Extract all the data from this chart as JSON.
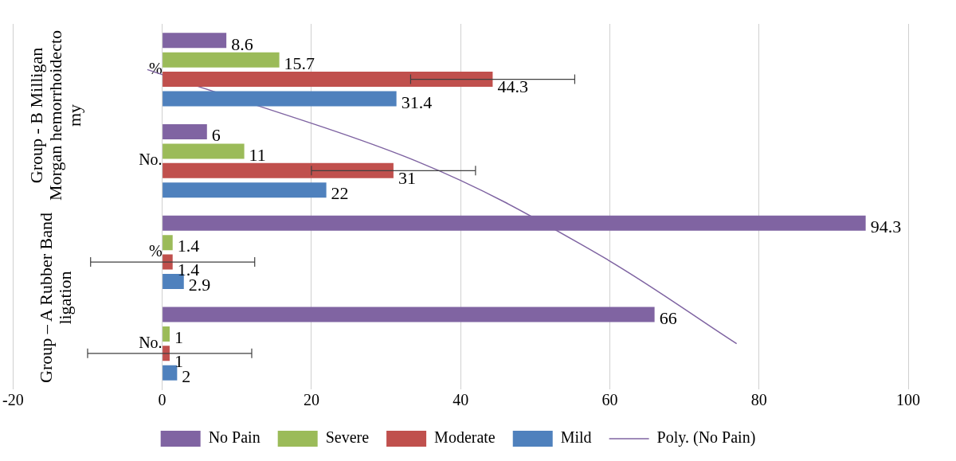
{
  "chart_data": {
    "type": "bar",
    "orientation": "horizontal",
    "categories": [
      "%",
      "No.",
      "%",
      "No."
    ],
    "series": [
      {
        "name": "No Pain",
        "color": "#8064a2",
        "values": [
          8.6,
          6,
          94.3,
          66
        ],
        "value_labels": [
          "8.6",
          "6",
          "94.3",
          "66"
        ]
      },
      {
        "name": "Severe",
        "color": "#9bbb59",
        "values": [
          15.7,
          11,
          1.4,
          1
        ],
        "value_labels": [
          "15.7",
          "11",
          "1.4",
          "1"
        ]
      },
      {
        "name": "Moderate",
        "color": "#c0504d",
        "values": [
          44.3,
          31,
          1.4,
          1
        ],
        "errors": [
          11,
          11,
          11,
          11
        ],
        "value_labels": [
          "44.3",
          "31",
          "1.4",
          "1"
        ]
      },
      {
        "name": "Mild",
        "color": "#4f81bd",
        "values": [
          31.4,
          22,
          2.9,
          2
        ],
        "value_labels": [
          "31.4",
          "22",
          "2.9",
          "2"
        ]
      },
      {
        "name": "Poly. (No Pain)",
        "type": "line",
        "color": "#7f64a2",
        "values": [
          -2,
          34,
          58,
          77
        ]
      }
    ],
    "xlim": [
      -20,
      100
    ],
    "xticks": [
      -20,
      0,
      20,
      40,
      60,
      80,
      100
    ],
    "grid": "x",
    "legend": "bottom",
    "annotations": [
      "Group - B Milligan Morgan hemorrhoidecto my",
      "Group – A Rubber Band ligation"
    ]
  }
}
